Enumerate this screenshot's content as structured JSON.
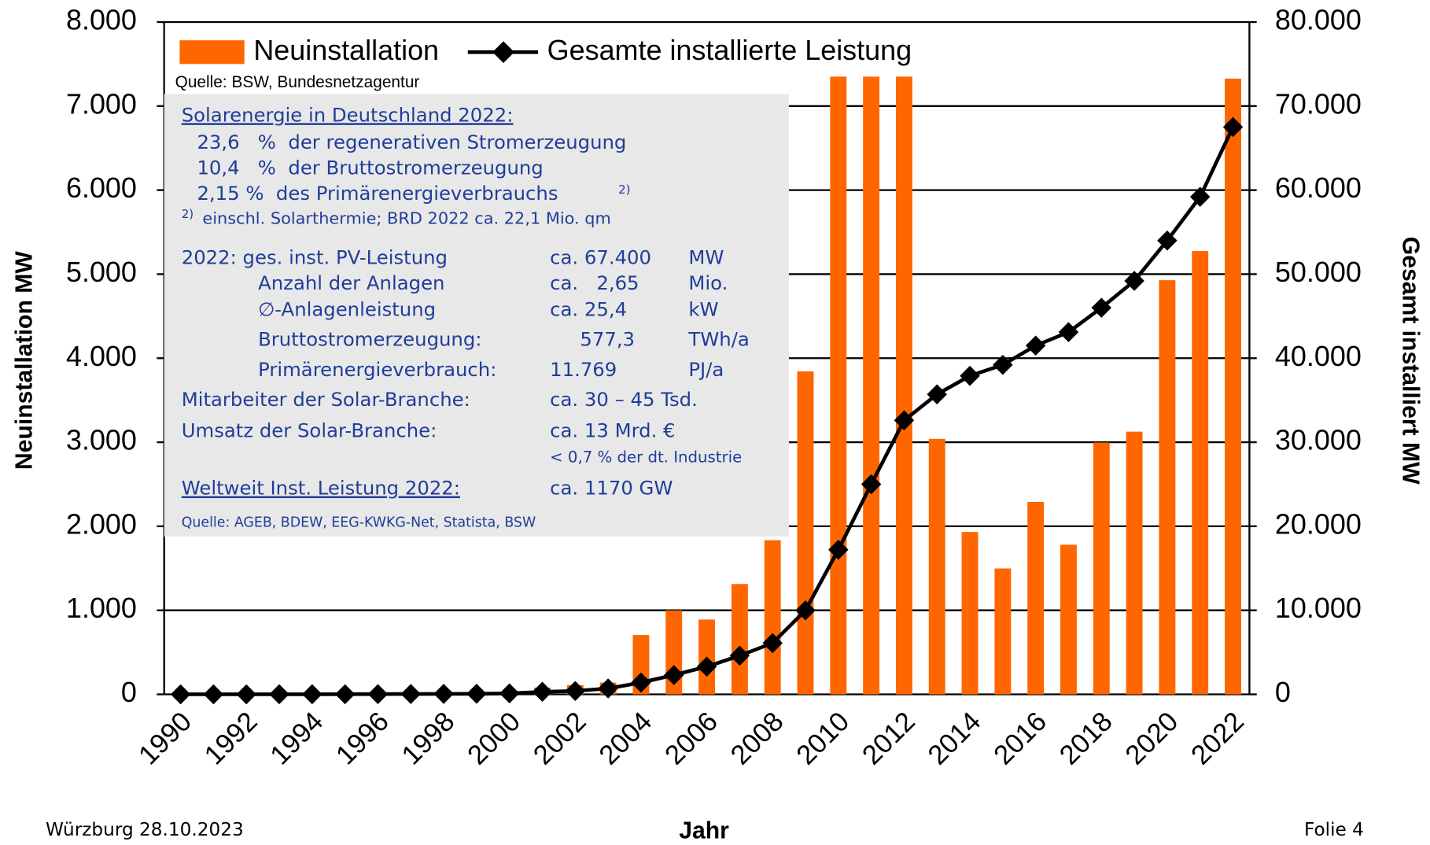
{
  "chart_data": {
    "type": "bar_line",
    "legend": {
      "bar": "Neuinstallation",
      "line": "Gesamte installierte Leistung"
    },
    "source": "Quelle: BSW, Bundesnetzagentur",
    "xlabel": "Jahr",
    "ylabel": "Neuinstallation MW",
    "y2label": "Gesamt installiert MW",
    "categories": [
      "1990",
      null,
      "1992",
      null,
      "1994",
      null,
      "1996",
      null,
      "1998",
      null,
      "2000",
      null,
      "2002",
      null,
      "2004",
      null,
      "2006",
      null,
      "2008",
      null,
      "2010",
      null,
      "2012",
      null,
      "2014",
      null,
      "2016",
      null,
      "2018",
      null,
      "2020",
      null,
      "2022"
    ],
    "series": [
      {
        "name": "Neuinstallation",
        "color": "#ff6600",
        "kind": "bar",
        "values": [
          0,
          0,
          3,
          5,
          6,
          6,
          11,
          12,
          10,
          12,
          40,
          80,
          110,
          140,
          706,
          999,
          890,
          1313,
          1834,
          3843,
          7350,
          7350,
          7350,
          3040,
          1932,
          1498,
          2290,
          1780,
          2996,
          3126,
          4928,
          5275,
          7327
        ]
      },
      {
        "name": "Gesamte installierte Leistung",
        "color": "#000000",
        "kind": "line",
        "axis": "y2",
        "values": [
          2,
          3,
          6,
          9,
          12,
          18,
          28,
          42,
          54,
          70,
          114,
          300,
          400,
          700,
          1400,
          2300,
          3300,
          4600,
          6100,
          10000,
          17200,
          25000,
          32600,
          35700,
          37900,
          39200,
          41500,
          43100,
          46000,
          49200,
          54000,
          59200,
          67500
        ]
      }
    ],
    "ylim": [
      0,
      8000
    ],
    "yticks": [
      0,
      {
        "value": 1000,
        "label": "1.000"
      },
      {
        "value": 2000,
        "label": "2.000"
      },
      {
        "value": 3000,
        "label": "3.000"
      },
      {
        "value": 4000,
        "label": "4.000"
      },
      {
        "value": 5000,
        "label": "5.000"
      },
      {
        "value": 6000,
        "label": "6.000"
      },
      {
        "value": 7000,
        "label": "7.000"
      },
      {
        "value": 8000,
        "label": "8.000"
      }
    ],
    "y2lim": [
      0,
      80000
    ],
    "y2ticks": [
      0,
      {
        "value": 10000,
        "label": "10.000"
      },
      {
        "value": 20000,
        "label": "20.000"
      },
      {
        "value": 30000,
        "label": "30.000"
      },
      {
        "value": 40000,
        "label": "40.000"
      },
      {
        "value": 50000,
        "label": "50.000"
      },
      {
        "value": 60000,
        "label": "60.000"
      },
      {
        "value": 70000,
        "label": "70.000"
      },
      {
        "value": 80000,
        "label": "80.000"
      }
    ],
    "grid": true
  },
  "info_box": {
    "heading": "Solarenergie in Deutschland 2022:",
    "shares": [
      "23,6   %  der regenerativen Stromerzeugung",
      "10,4   %  der Bruttostromerzeugung",
      "2,15 %  des Primärenergieverbrauchs"
    ],
    "footnote_mark": "2)",
    "footnote": "einschl. Solarthermie; BRD 2022 ca. 22,1 Mio. qm",
    "rows": [
      [
        "2022: ges. inst. PV-Leistung",
        "ca. 67.400",
        "MW"
      ],
      [
        "Anzahl der Anlagen",
        "ca.   2,65",
        "Mio."
      ],
      [
        "∅-Anlagenleistung",
        "ca. 25,4",
        "kW"
      ],
      [
        "Bruttostromerzeugung:",
        "577,3",
        "TWh/a"
      ],
      [
        "Primärenergieverbrauch:",
        "11.769",
        "PJ/a"
      ],
      [
        "Mitarbeiter der Solar-Branche:",
        "ca. 30 – 45 Tsd."
      ],
      [
        "Umsatz der Solar-Branche:",
        "ca. 13 Mrd. €"
      ]
    ],
    "industry_note": "< 0,7 % der dt. Industrie",
    "world": [
      "Weltweit Inst. Leistung 2022:",
      "ca. 1170 GW"
    ],
    "source": "Quelle: AGEB, BDEW, EEG-KWKG-Net, Statista, BSW"
  },
  "footer": {
    "left": "Würzburg 28.10.2023",
    "right": "Folie 4"
  }
}
